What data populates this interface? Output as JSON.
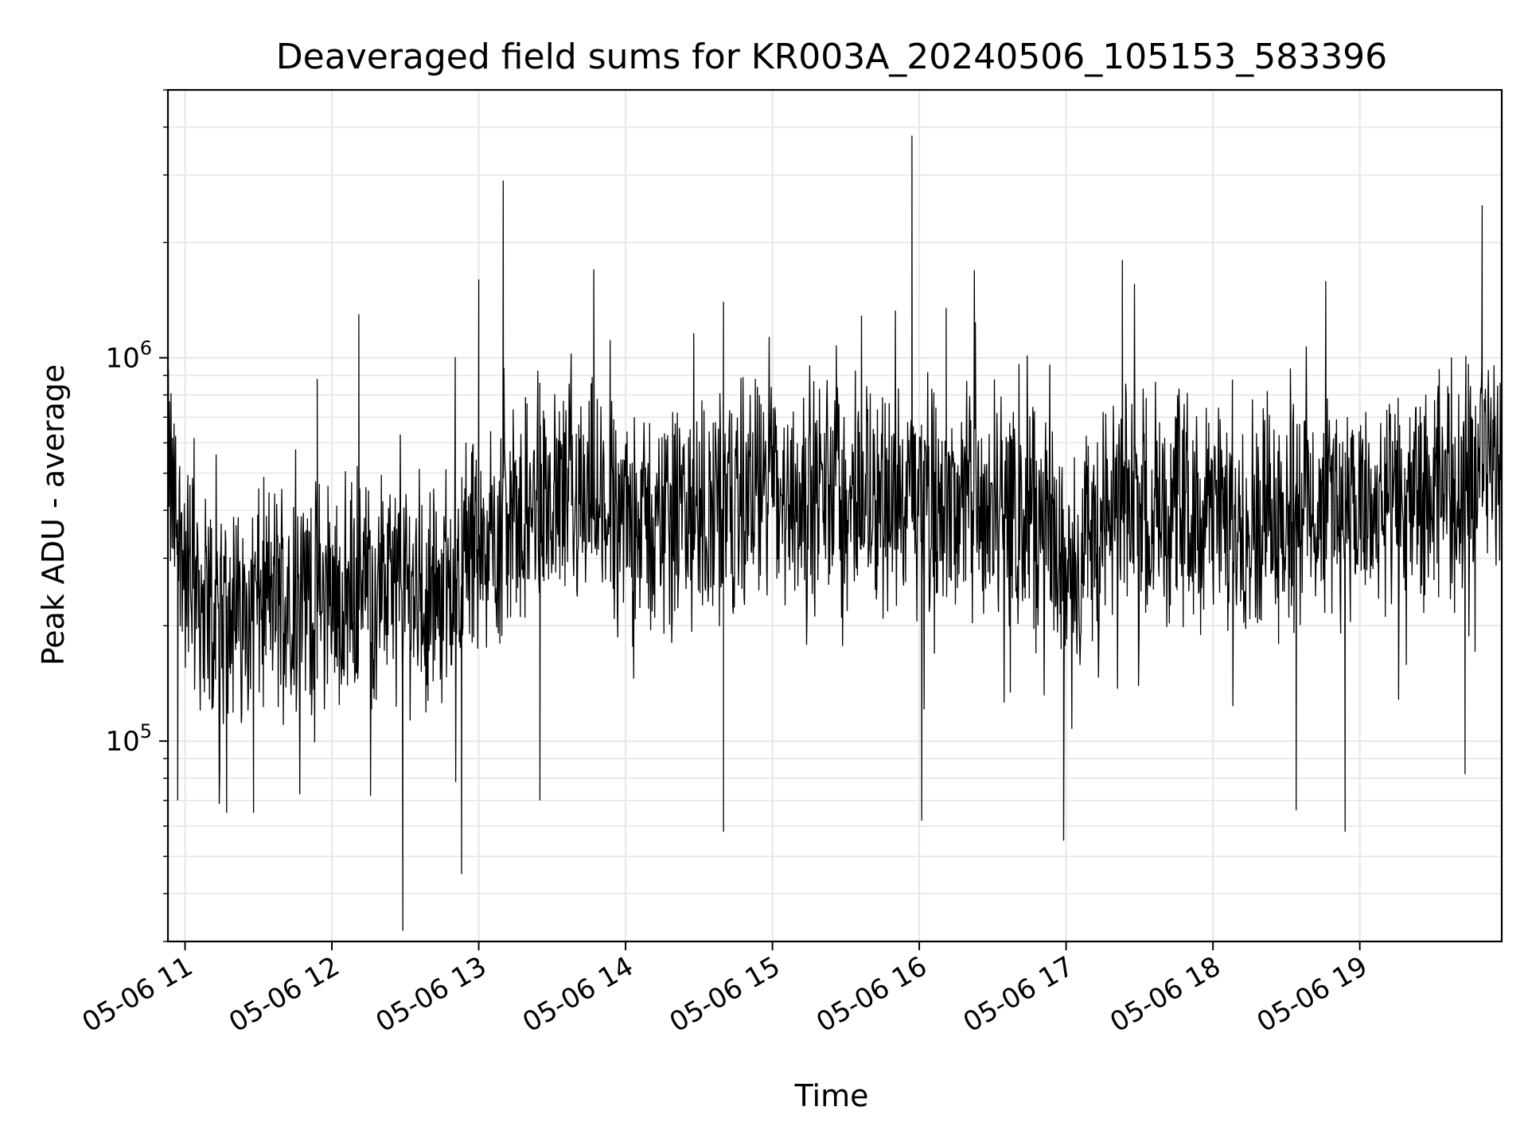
{
  "chart_data": {
    "type": "line",
    "title": "Deaveraged field sums for KR003A_20240506_105153_583396",
    "xlabel": "Time",
    "ylabel": "Peak ADU - average",
    "yscale": "log",
    "grid": true,
    "line_color": "#000000",
    "grid_color": "#e6e6e6",
    "x_tick_labels": [
      "05-06 11",
      "05-06 12",
      "05-06 13",
      "05-06 14",
      "05-06 15",
      "05-06 16",
      "05-06 17",
      "05-06 18",
      "05-06 19"
    ],
    "y_tick_labels": [
      {
        "base": "10",
        "exp": "5",
        "value": 100000
      },
      {
        "base": "10",
        "exp": "6",
        "value": 1000000
      }
    ],
    "xlim": [
      "2024-05-06 10:53",
      "2024-05-06 19:58"
    ],
    "ylim": [
      30000,
      5000000
    ],
    "series": [
      {
        "x": [
          "2024-05-06 10:53",
          "2024-05-06 11:00",
          "2024-05-06 11:15",
          "2024-05-06 11:30",
          "2024-05-06 11:45",
          "2024-05-06 12:00",
          "2024-05-06 12:15",
          "2024-05-06 12:30",
          "2024-05-06 12:45",
          "2024-05-06 13:00",
          "2024-05-06 13:15",
          "2024-05-06 13:30",
          "2024-05-06 13:45",
          "2024-05-06 14:00",
          "2024-05-06 14:15",
          "2024-05-06 14:30",
          "2024-05-06 14:45",
          "2024-05-06 15:00",
          "2024-05-06 15:15",
          "2024-05-06 15:30",
          "2024-05-06 15:45",
          "2024-05-06 16:00",
          "2024-05-06 16:15",
          "2024-05-06 16:30",
          "2024-05-06 16:45",
          "2024-05-06 17:00",
          "2024-05-06 17:15",
          "2024-05-06 17:30",
          "2024-05-06 17:45",
          "2024-05-06 18:00",
          "2024-05-06 18:15",
          "2024-05-06 18:30",
          "2024-05-06 18:45",
          "2024-05-06 19:00",
          "2024-05-06 19:15",
          "2024-05-06 19:30",
          "2024-05-06 19:45",
          "2024-05-06 19:58"
        ],
        "y": [
          500000,
          280000,
          200000,
          230000,
          250000,
          230000,
          260000,
          250000,
          250000,
          330000,
          380000,
          420000,
          450000,
          370000,
          370000,
          390000,
          420000,
          450000,
          450000,
          420000,
          450000,
          400000,
          420000,
          420000,
          380000,
          300000,
          380000,
          420000,
          420000,
          400000,
          400000,
          420000,
          430000,
          400000,
          400000,
          420000,
          500000,
          550000
        ]
      }
    ],
    "spikes": [
      {
        "x": "2024-05-06 10:53",
        "y": 800000
      },
      {
        "x": "2024-05-06 10:57",
        "y": 70000
      },
      {
        "x": "2024-05-06 11:17",
        "y": 65000
      },
      {
        "x": "2024-05-06 11:28",
        "y": 65000
      },
      {
        "x": "2024-05-06 11:54",
        "y": 880000
      },
      {
        "x": "2024-05-06 12:11",
        "y": 1300000
      },
      {
        "x": "2024-05-06 12:29",
        "y": 32000
      },
      {
        "x": "2024-05-06 12:53",
        "y": 45000
      },
      {
        "x": "2024-05-06 13:00",
        "y": 1600000
      },
      {
        "x": "2024-05-06 13:10",
        "y": 2900000
      },
      {
        "x": "2024-05-06 13:25",
        "y": 70000
      },
      {
        "x": "2024-05-06 13:47",
        "y": 1700000
      },
      {
        "x": "2024-05-06 14:40",
        "y": 1400000
      },
      {
        "x": "2024-05-06 14:40",
        "y": 58000
      },
      {
        "x": "2024-05-06 15:57",
        "y": 3800000
      },
      {
        "x": "2024-05-06 16:01",
        "y": 62000
      },
      {
        "x": "2024-05-06 16:11",
        "y": 1350000
      },
      {
        "x": "2024-05-06 16:59",
        "y": 55000
      },
      {
        "x": "2024-05-06 17:23",
        "y": 1800000
      },
      {
        "x": "2024-05-06 18:34",
        "y": 66000
      },
      {
        "x": "2024-05-06 18:54",
        "y": 58000
      },
      {
        "x": "2024-05-06 19:50",
        "y": 2500000
      },
      {
        "x": "2024-05-06 19:43",
        "y": 82000
      }
    ]
  }
}
